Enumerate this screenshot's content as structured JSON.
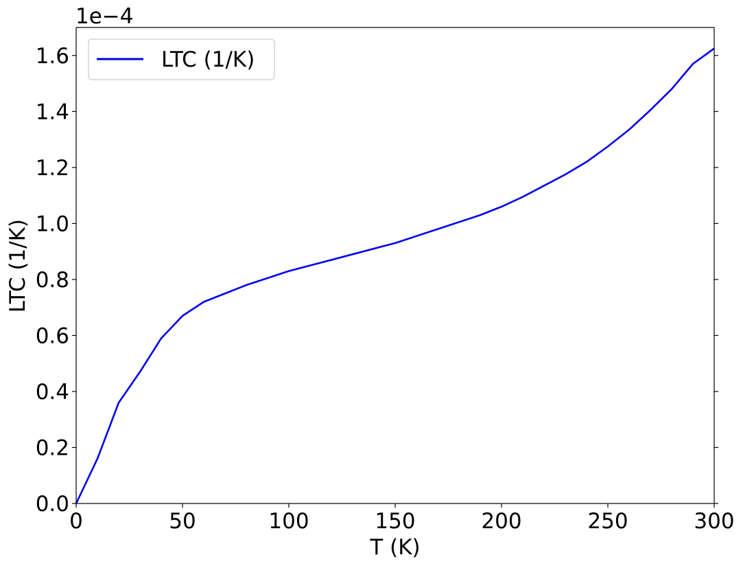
{
  "chart_data": {
    "type": "line",
    "xlabel": "T (K)",
    "ylabel": "LTC (1/K)",
    "y_offset_label": "1e−4",
    "xlim": [
      0,
      300
    ],
    "ylim": [
      0,
      1.7
    ],
    "xticks": [
      0,
      50,
      100,
      150,
      200,
      250,
      300
    ],
    "yticks": [
      0.0,
      0.2,
      0.4,
      0.6,
      0.8,
      1.0,
      1.2,
      1.4,
      1.6
    ],
    "xtick_labels": [
      "0",
      "50",
      "100",
      "150",
      "200",
      "250",
      "300"
    ],
    "ytick_labels": [
      "0.0",
      "0.2",
      "0.4",
      "0.6",
      "0.8",
      "1.0",
      "1.2",
      "1.4",
      "1.6"
    ],
    "legend_position": "top-left",
    "grid": false,
    "series": [
      {
        "name": "LTC (1/K)",
        "color": "#0000ee",
        "x": [
          0,
          10,
          20,
          30,
          40,
          50,
          60,
          70,
          80,
          90,
          100,
          110,
          120,
          130,
          140,
          150,
          160,
          170,
          180,
          190,
          200,
          210,
          220,
          230,
          240,
          250,
          260,
          270,
          280,
          290,
          300
        ],
        "y": [
          0.0,
          0.16,
          0.36,
          0.47,
          0.59,
          0.67,
          0.72,
          0.75,
          0.78,
          0.805,
          0.83,
          0.85,
          0.87,
          0.89,
          0.91,
          0.93,
          0.955,
          0.98,
          1.005,
          1.03,
          1.06,
          1.095,
          1.135,
          1.175,
          1.22,
          1.275,
          1.335,
          1.405,
          1.48,
          1.57,
          1.625
        ]
      }
    ]
  }
}
